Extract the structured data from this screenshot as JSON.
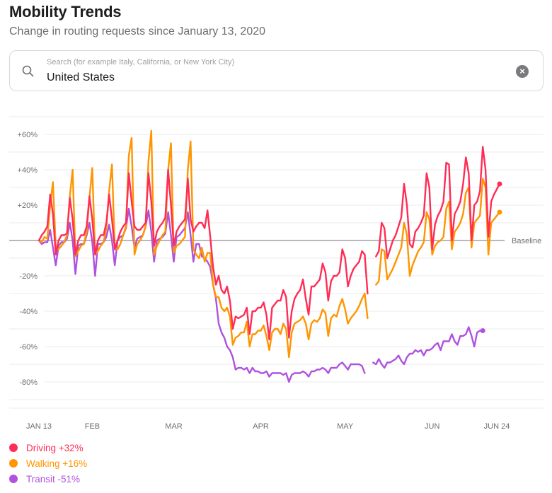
{
  "header": {
    "title": "Mobility Trends",
    "subtitle": "Change in routing requests since January 13, 2020"
  },
  "search": {
    "placeholder": "Search (for example Italy, California, or New York City)",
    "value": "United States",
    "icon": "search-icon",
    "clear_icon": "clear-icon"
  },
  "chart_data": {
    "type": "line",
    "title": "Mobility Trends",
    "subtitle": "Change in routing requests since January 13, 2020",
    "xlabel": "",
    "ylabel": "",
    "ylim": [
      -90,
      70
    ],
    "yticks": [
      60,
      40,
      20,
      -20,
      -40,
      -60,
      -80
    ],
    "ytick_labels": [
      "+60%",
      "+40%",
      "+20%",
      "-20%",
      "-40%",
      "-60%",
      "-80%"
    ],
    "minor_gridlines_step": 10,
    "baseline_value": 0,
    "baseline_label": "Baseline",
    "x_start": "2020-01-13",
    "x_end": "2020-06-24",
    "xticks": [
      {
        "day": 0,
        "label": "JAN 13"
      },
      {
        "day": 19,
        "label": "FEB"
      },
      {
        "day": 48,
        "label": "MAR"
      },
      {
        "day": 79,
        "label": "APR"
      },
      {
        "day": 109,
        "label": "MAY"
      },
      {
        "day": 140,
        "label": "JUN"
      },
      {
        "day": 163,
        "label": "JUN 24"
      }
    ],
    "grid": true,
    "legend_position": "bottom-left",
    "series": [
      {
        "name": "Driving",
        "legend_label": "Driving +32%",
        "color": "#ff2d55",
        "final_value": 32,
        "values": [
          0,
          3,
          5,
          8,
          26,
          15,
          -8,
          0,
          3,
          3,
          4,
          24,
          12,
          -8,
          0,
          3,
          3,
          8,
          25,
          12,
          -8,
          0,
          3,
          3,
          10,
          26,
          12,
          -5,
          0,
          5,
          8,
          10,
          38,
          22,
          8,
          6,
          6,
          8,
          10,
          38,
          22,
          -3,
          5,
          8,
          10,
          13,
          40,
          20,
          -3,
          5,
          8,
          10,
          12,
          35,
          12,
          5,
          8,
          10,
          10,
          7,
          17,
          2,
          -15,
          -25,
          -20,
          -28,
          -30,
          -26,
          -34,
          -50,
          -43,
          -44,
          -43,
          -42,
          -38,
          -53,
          -40,
          -40,
          -38,
          -38,
          -35,
          -42,
          -56,
          -38,
          -36,
          -34,
          -34,
          -28,
          -32,
          -55,
          -40,
          -33,
          -30,
          -28,
          -22,
          -33,
          -42,
          -26,
          -26,
          -24,
          -22,
          -13,
          -18,
          -34,
          -23,
          -20,
          -20,
          -18,
          -5,
          -10,
          -26,
          -20,
          -16,
          -14,
          -12,
          -6,
          -8,
          -30,
          null,
          null,
          -9,
          -6,
          10,
          7,
          -10,
          -5,
          0,
          3,
          8,
          13,
          32,
          20,
          -2,
          -4,
          5,
          7,
          10,
          14,
          38,
          30,
          -5,
          9,
          14,
          17,
          22,
          44,
          43,
          0,
          15,
          18,
          22,
          32,
          47,
          38,
          0,
          20,
          22,
          28,
          53,
          40,
          2,
          22,
          26,
          29,
          32
        ],
        "end_marker": true
      },
      {
        "name": "Walking",
        "legend_label": "Walking +16%",
        "color": "#ff9500",
        "final_value": 16,
        "values": [
          0,
          -1,
          2,
          1,
          20,
          33,
          -4,
          -5,
          -3,
          -1,
          3,
          25,
          40,
          -9,
          -6,
          -3,
          -2,
          5,
          24,
          41,
          -8,
          -6,
          -3,
          -1,
          7,
          28,
          43,
          -4,
          -5,
          -2,
          3,
          8,
          48,
          58,
          -8,
          -2,
          0,
          3,
          8,
          45,
          62,
          -8,
          -3,
          0,
          3,
          5,
          40,
          55,
          -7,
          -3,
          -2,
          0,
          2,
          40,
          56,
          -5,
          -8,
          -10,
          -4,
          -12,
          -7,
          -7,
          -25,
          -32,
          -32,
          -38,
          -40,
          -38,
          -43,
          -59,
          -55,
          -54,
          -52,
          -52,
          -46,
          -60,
          -53,
          -53,
          -51,
          -51,
          -48,
          -54,
          -62,
          -52,
          -50,
          -50,
          -53,
          -47,
          -50,
          -66,
          -52,
          -47,
          -46,
          -45,
          -43,
          -47,
          -56,
          -47,
          -45,
          -46,
          -44,
          -39,
          -41,
          -54,
          -44,
          -42,
          -43,
          -37,
          -33,
          -39,
          -47,
          -44,
          -42,
          -40,
          -37,
          -33,
          -30,
          -44,
          null,
          null,
          -25,
          -23,
          -5,
          -6,
          -22,
          -19,
          -16,
          -12,
          -8,
          -4,
          10,
          3,
          -20,
          -14,
          -10,
          -6,
          -4,
          -1,
          16,
          12,
          -8,
          -3,
          -1,
          0,
          2,
          18,
          22,
          -5,
          5,
          7,
          10,
          15,
          27,
          30,
          -4,
          10,
          12,
          14,
          35,
          30,
          -8,
          10,
          12,
          14,
          16
        ],
        "end_marker": true
      },
      {
        "name": "Transit",
        "legend_label": "Transit -51%",
        "color": "#af52de",
        "final_value": -51,
        "values": [
          0,
          -2,
          -1,
          -1,
          6,
          -4,
          -14,
          -3,
          -1,
          -1,
          1,
          10,
          0,
          -19,
          -3,
          -2,
          -2,
          3,
          10,
          -1,
          -20,
          -2,
          -2,
          -1,
          2,
          9,
          0,
          -14,
          0,
          2,
          3,
          7,
          18,
          8,
          -4,
          1,
          2,
          3,
          8,
          17,
          5,
          -12,
          0,
          1,
          2,
          4,
          16,
          3,
          -12,
          2,
          3,
          5,
          7,
          16,
          3,
          -12,
          -2,
          -2,
          -9,
          -10,
          -12,
          -15,
          -25,
          -33,
          -47,
          -52,
          -55,
          -60,
          -62,
          -66,
          -73,
          -72,
          -72,
          -73,
          -72,
          -75,
          -72,
          -74,
          -74,
          -75,
          -75,
          -74,
          -77,
          -75,
          -75,
          -75,
          -75,
          -76,
          -75,
          -80,
          -76,
          -75,
          -75,
          -75,
          -74,
          -75,
          -77,
          -74,
          -74,
          -73,
          -73,
          -72,
          -73,
          -75,
          -72,
          -72,
          -72,
          -70,
          -69,
          -71,
          -73,
          -70,
          -70,
          -70,
          -70,
          -71,
          -75,
          null,
          null,
          -69,
          -70,
          -67,
          -70,
          -72,
          -69,
          -69,
          -68,
          -67,
          -65,
          -68,
          -70,
          -66,
          -64,
          -64,
          -62,
          -63,
          -62,
          -65,
          -62,
          -62,
          -61,
          -59,
          -58,
          -62,
          -57,
          -57,
          -57,
          -53,
          -57,
          -59,
          -54,
          -54,
          -53,
          -49,
          -54,
          -60,
          -52,
          -51,
          -51
        ],
        "end_marker": true
      }
    ]
  },
  "legend": [
    {
      "label": "Driving +32%",
      "color": "#ff2d55"
    },
    {
      "label": "Walking +16%",
      "color": "#ff9500"
    },
    {
      "label": "Transit -51%",
      "color": "#af52de"
    }
  ]
}
